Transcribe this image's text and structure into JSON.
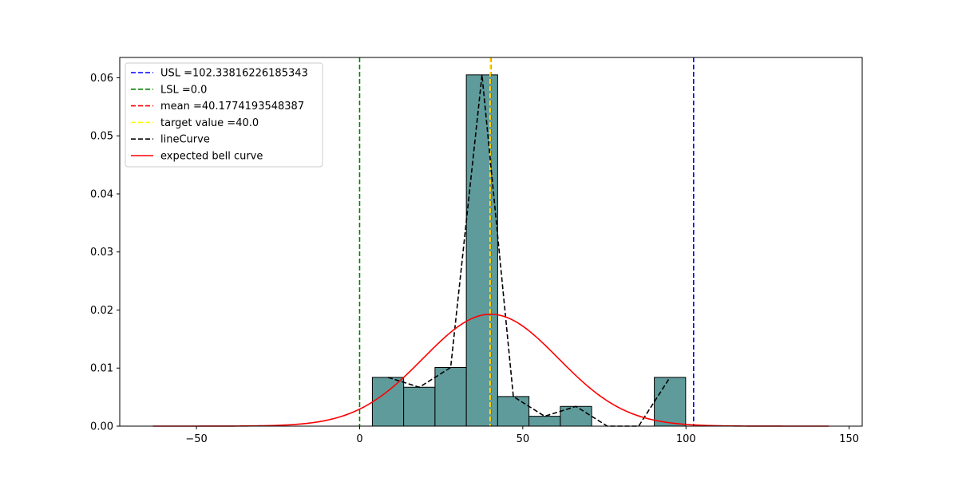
{
  "chart_data": {
    "type": "bar",
    "title": "",
    "xlabel": "",
    "ylabel": "",
    "xlim": [
      -73.5,
      154.0
    ],
    "ylim": [
      0,
      0.0635
    ],
    "grid": false,
    "legend_placement": "top-left",
    "x_ticks": [
      -50,
      0,
      50,
      100,
      150
    ],
    "x_tick_labels": [
      "−50",
      "0",
      "50",
      "100",
      "150"
    ],
    "y_ticks": [
      0.0,
      0.01,
      0.02,
      0.03,
      0.04,
      0.05,
      0.06
    ],
    "y_tick_labels": [
      "0.00",
      "0.01",
      "0.02",
      "0.03",
      "0.04",
      "0.05",
      "0.06"
    ],
    "histogram": {
      "bin_edges": [
        3.9,
        13.5,
        23.1,
        32.7,
        42.3,
        51.9,
        61.5,
        71.1,
        80.7,
        90.3,
        99.9
      ],
      "density": [
        0.0084,
        0.0067,
        0.0101,
        0.0605,
        0.0051,
        0.0017,
        0.0034,
        0.0,
        0.0,
        0.0084
      ],
      "fill_color": "#5f9b9b",
      "edge_color": "#000000"
    },
    "vertical_lines": [
      {
        "name": "USL =102.33816226185343",
        "x": 102.33816226185343,
        "color": "#0000ff",
        "style": "dashed"
      },
      {
        "name": "LSL =0.0",
        "x": 0.0,
        "color": "#008000",
        "style": "dashed"
      },
      {
        "name": "mean =40.1774193548387",
        "x": 40.1774193548387,
        "color": "#ff0000",
        "style": "dashed"
      },
      {
        "name": "target value =40.0",
        "x": 40.0,
        "color": "#ffff00",
        "style": "dashed"
      }
    ],
    "line_curve": {
      "name": "lineCurve",
      "color": "#000000",
      "style": "dashed",
      "x": [
        8.7,
        18.3,
        27.9,
        37.5,
        47.1,
        56.7,
        66.3,
        75.9,
        85.5,
        95.1
      ],
      "y": [
        0.0084,
        0.0067,
        0.0101,
        0.0605,
        0.0051,
        0.0017,
        0.0034,
        0.0,
        0.0,
        0.0084
      ]
    },
    "bell_curve": {
      "name": "expected bell curve",
      "color": "#ff0000",
      "style": "solid",
      "mean": 40.18,
      "std": 20.7,
      "x_range": [
        -63.3,
        143.7
      ]
    },
    "legend": [
      {
        "label": "USL =102.33816226185343",
        "color": "#0000ff",
        "style": "dashed"
      },
      {
        "label": "LSL =0.0",
        "color": "#008000",
        "style": "dashed"
      },
      {
        "label": "mean =40.1774193548387",
        "color": "#ff0000",
        "style": "dashed"
      },
      {
        "label": "target value =40.0",
        "color": "#ffff00",
        "style": "dashed"
      },
      {
        "label": "lineCurve",
        "color": "#000000",
        "style": "dashed"
      },
      {
        "label": "expected bell curve",
        "color": "#ff0000",
        "style": "solid"
      }
    ]
  }
}
